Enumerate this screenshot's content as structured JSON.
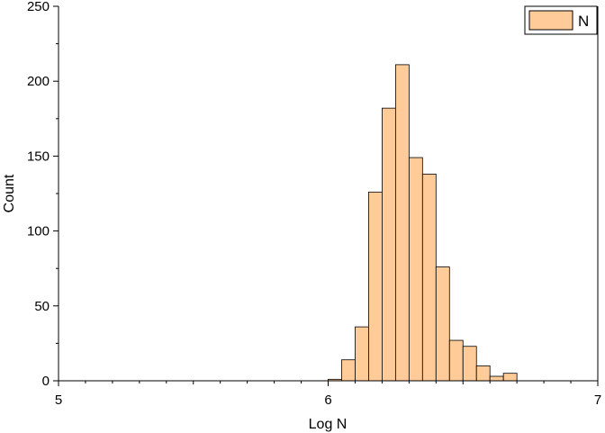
{
  "chart_data": {
    "type": "bar",
    "xlabel": "Log N",
    "ylabel": "Count",
    "xlim": [
      5,
      7
    ],
    "ylim": [
      0,
      250
    ],
    "x_ticks": [
      "5",
      "6",
      "7"
    ],
    "y_ticks": [
      "0",
      "50",
      "100",
      "150",
      "200",
      "250"
    ],
    "legend": {
      "position": "top-right"
    },
    "bar_color": "#FFCC99",
    "bar_edge_color": "#000000",
    "series": [
      {
        "name": "N",
        "bins": [
          {
            "x0": 6.0,
            "x1": 6.05,
            "count": 1
          },
          {
            "x0": 6.05,
            "x1": 6.1,
            "count": 14
          },
          {
            "x0": 6.1,
            "x1": 6.15,
            "count": 36
          },
          {
            "x0": 6.15,
            "x1": 6.2,
            "count": 126
          },
          {
            "x0": 6.2,
            "x1": 6.25,
            "count": 182
          },
          {
            "x0": 6.25,
            "x1": 6.3,
            "count": 211
          },
          {
            "x0": 6.3,
            "x1": 6.35,
            "count": 149
          },
          {
            "x0": 6.35,
            "x1": 6.4,
            "count": 138
          },
          {
            "x0": 6.4,
            "x1": 6.45,
            "count": 76
          },
          {
            "x0": 6.45,
            "x1": 6.5,
            "count": 27
          },
          {
            "x0": 6.5,
            "x1": 6.55,
            "count": 23
          },
          {
            "x0": 6.55,
            "x1": 6.6,
            "count": 10
          },
          {
            "x0": 6.6,
            "x1": 6.65,
            "count": 3
          },
          {
            "x0": 6.65,
            "x1": 6.7,
            "count": 5
          }
        ]
      }
    ]
  }
}
